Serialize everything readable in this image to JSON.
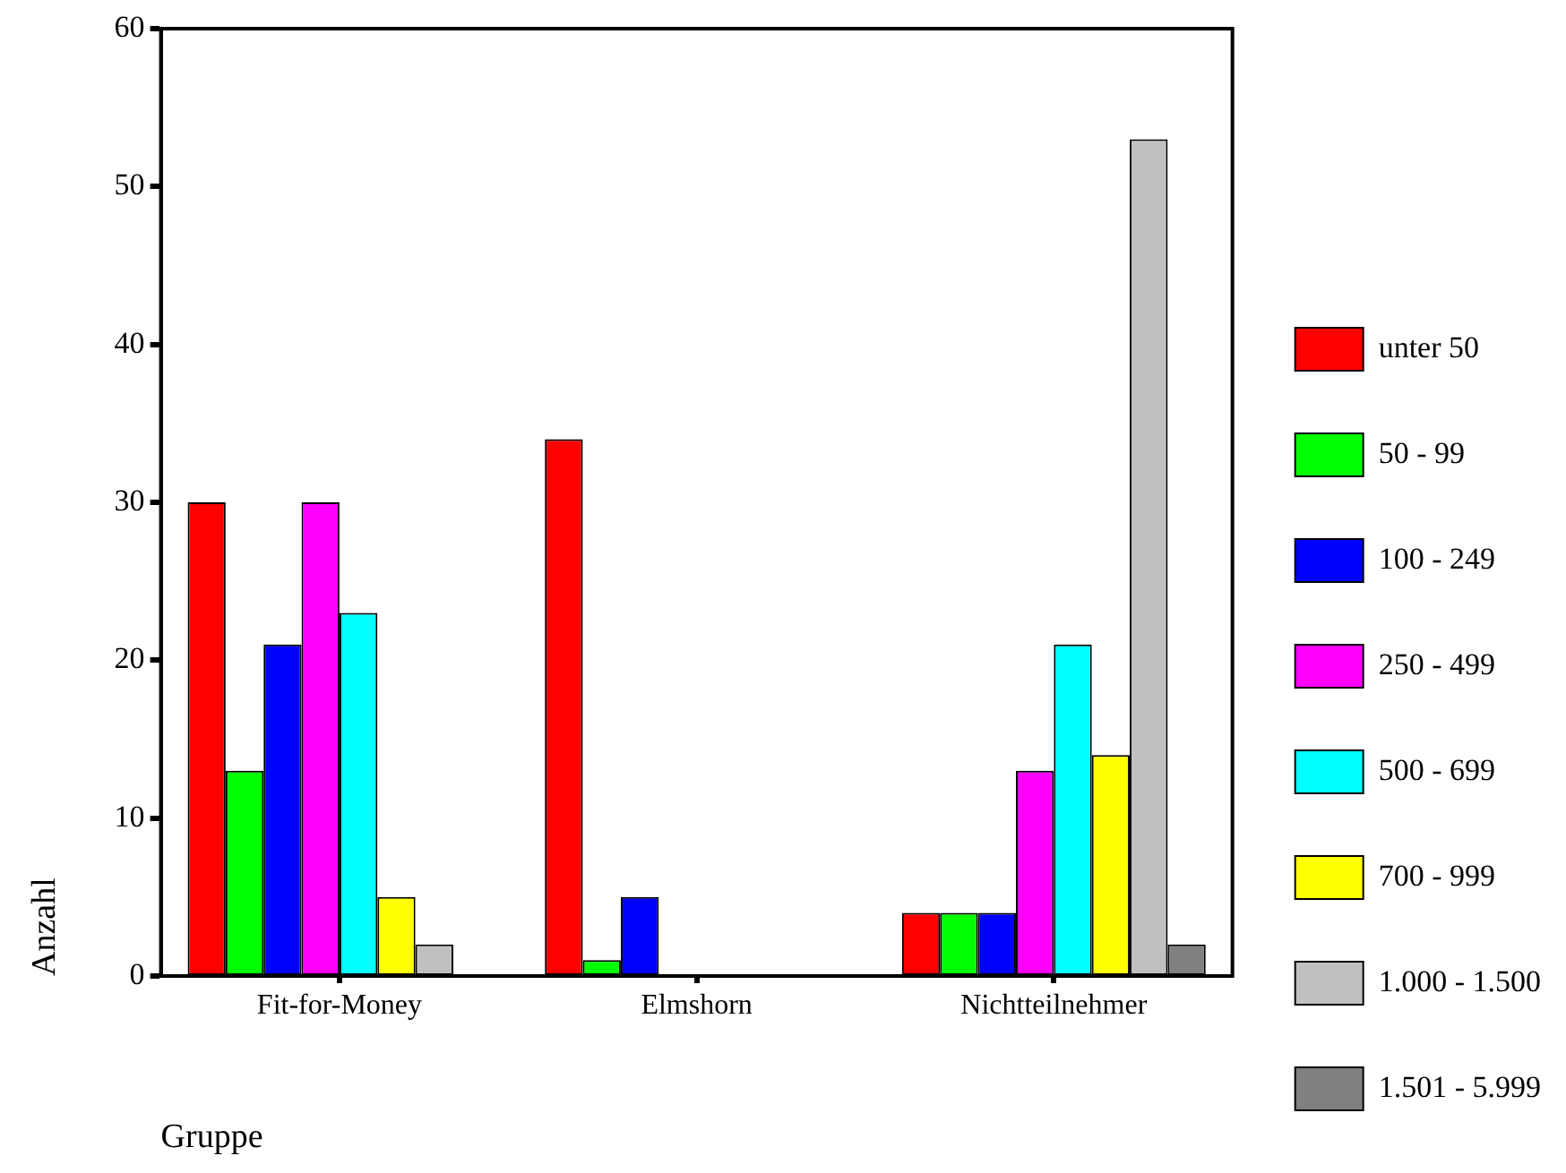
{
  "chart_data": {
    "type": "bar",
    "xlabel": "Gruppe",
    "ylabel": "Anzahl",
    "categories": [
      "Fit-for-Money",
      "Elmshorn",
      "Nichtteilnehmer"
    ],
    "series": [
      {
        "name": "unter 50",
        "color": "#ff0000",
        "values": [
          30,
          34,
          4
        ]
      },
      {
        "name": "50 - 99",
        "color": "#00ff00",
        "values": [
          13,
          1,
          4
        ]
      },
      {
        "name": "100 - 249",
        "color": "#0000ff",
        "values": [
          21,
          5,
          4
        ]
      },
      {
        "name": "250 - 499",
        "color": "#ff00ff",
        "values": [
          30,
          0,
          13
        ]
      },
      {
        "name": "500 - 699",
        "color": "#00ffff",
        "values": [
          23,
          0,
          21
        ]
      },
      {
        "name": "700 - 999",
        "color": "#ffff00",
        "values": [
          5,
          0,
          14
        ]
      },
      {
        "name": "1.000 - 1.500",
        "color": "#c0c0c0",
        "values": [
          2,
          0,
          53
        ]
      },
      {
        "name": "1.501 - 5.999",
        "color": "#808080",
        "values": [
          0,
          0,
          2
        ]
      }
    ],
    "ylim": [
      0,
      60
    ],
    "yticks": [
      0,
      10,
      20,
      30,
      40,
      50,
      60
    ],
    "grid": false,
    "legend": "right"
  }
}
